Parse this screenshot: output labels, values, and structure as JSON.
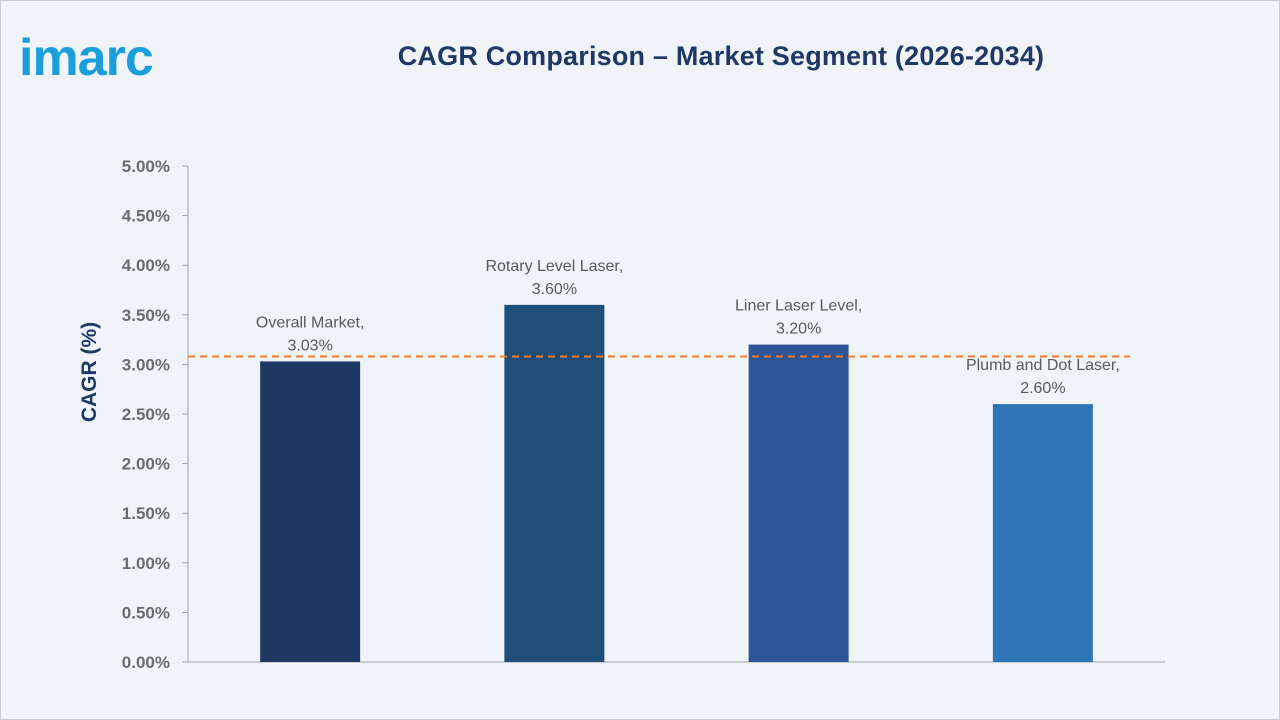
{
  "brand": {
    "logo_text": "imarc",
    "logo_color": "#1a9fdb"
  },
  "chart_data": {
    "type": "bar",
    "title": "CAGR Comparison – Market Segment (2026-2034)",
    "ylabel": "CAGR (%)",
    "xlabel": "",
    "categories": [
      "Overall Market,",
      "Rotary Level Laser,",
      "Liner Laser Level,",
      "Plumb and Dot Laser,"
    ],
    "values": [
      3.03,
      3.6,
      3.2,
      2.6
    ],
    "value_labels": [
      "3.03%",
      "3.60%",
      "3.20%",
      "2.60%"
    ],
    "bar_colors": [
      "#1f3864",
      "#1f4e79",
      "#2f5597",
      "#2e75b6"
    ],
    "ylim": [
      0,
      5
    ],
    "yticks": [
      "0.00%",
      "0.50%",
      "1.00%",
      "1.50%",
      "2.00%",
      "2.50%",
      "3.00%",
      "3.50%",
      "4.00%",
      "4.50%",
      "5.00%"
    ],
    "reference_line": {
      "value": 3.08,
      "color": "#ed7d31",
      "style": "dashed"
    },
    "grid": false,
    "legend": "none"
  }
}
